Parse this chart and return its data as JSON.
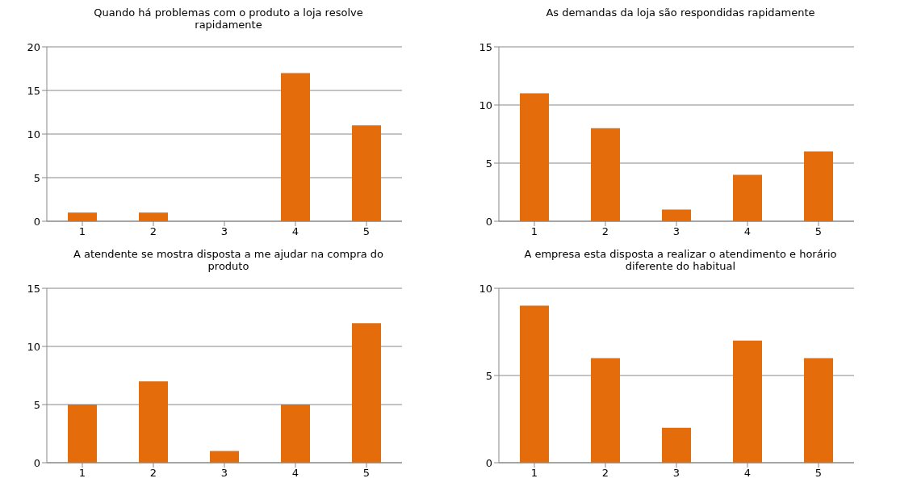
{
  "chart_data": [
    {
      "type": "bar",
      "title": "Quando há problemas com o produto a loja resolve rapidamente",
      "categories": [
        "1",
        "2",
        "3",
        "4",
        "5"
      ],
      "values": [
        1,
        1,
        0,
        17,
        11
      ],
      "color": "#e46c0a",
      "ylim": [
        0,
        20
      ],
      "yticks": [
        0,
        5,
        10,
        15,
        20
      ],
      "grid": "y"
    },
    {
      "type": "bar",
      "title": "As demandas da loja são respondidas rapidamente",
      "categories": [
        "1",
        "2",
        "3",
        "4",
        "5"
      ],
      "values": [
        11,
        8,
        1,
        4,
        6
      ],
      "color": "#e46c0a",
      "ylim": [
        0,
        15
      ],
      "yticks": [
        0,
        5,
        10,
        15
      ],
      "grid": "y"
    },
    {
      "type": "bar",
      "title": "A atendente se mostra disposta a me ajudar na compra do produto",
      "categories": [
        "1",
        "2",
        "3",
        "4",
        "5"
      ],
      "values": [
        5,
        7,
        1,
        5,
        12
      ],
      "color": "#e46c0a",
      "ylim": [
        0,
        15
      ],
      "yticks": [
        0,
        5,
        10,
        15
      ],
      "grid": "y"
    },
    {
      "type": "bar",
      "title": "A empresa esta disposta a realizar o atendimento e horário diferente do habitual",
      "categories": [
        "1",
        "2",
        "3",
        "4",
        "5"
      ],
      "values": [
        9,
        6,
        2,
        7,
        6
      ],
      "color": "#e46c0a",
      "ylim": [
        0,
        10
      ],
      "yticks": [
        0,
        5,
        10
      ],
      "grid": "y"
    }
  ]
}
